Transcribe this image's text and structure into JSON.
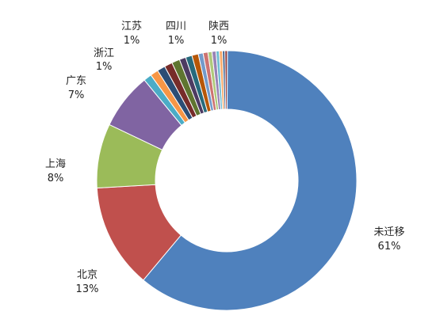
{
  "chart_data": {
    "type": "pie",
    "variant": "donut",
    "title": "",
    "slices": [
      {
        "label": "未迁移",
        "value": 61,
        "value_label": "61%",
        "color": "#4f81bd"
      },
      {
        "label": "北京",
        "value": 13,
        "value_label": "13%",
        "color": "#c0504d"
      },
      {
        "label": "上海",
        "value": 8,
        "value_label": "8%",
        "color": "#9bbb59"
      },
      {
        "label": "广东",
        "value": 7,
        "value_label": "7%",
        "color": "#8064a2"
      },
      {
        "label": "浙江",
        "value": 1,
        "value_label": "1%",
        "color": "#4bacc6"
      },
      {
        "label": "",
        "value": 1,
        "value_label": "",
        "color": "#f79646"
      },
      {
        "label": "江苏",
        "value": 1,
        "value_label": "1%",
        "color": "#2c4d75"
      },
      {
        "label": "",
        "value": 1,
        "value_label": "",
        "color": "#772c2a"
      },
      {
        "label": "四川",
        "value": 1,
        "value_label": "1%",
        "color": "#5f7530"
      },
      {
        "label": "",
        "value": 0.8,
        "value_label": "",
        "color": "#4d3b62"
      },
      {
        "label": "",
        "value": 0.8,
        "value_label": "",
        "color": "#276a7c"
      },
      {
        "label": "陕西",
        "value": 0.8,
        "value_label": "1%",
        "color": "#b65708"
      },
      {
        "label": "",
        "value": 0.6,
        "value_label": "",
        "color": "#729aca"
      },
      {
        "label": "",
        "value": 0.6,
        "value_label": "",
        "color": "#cd7371"
      },
      {
        "label": "",
        "value": 0.5,
        "value_label": "",
        "color": "#afc97a"
      },
      {
        "label": "",
        "value": 0.5,
        "value_label": "",
        "color": "#9983b5"
      },
      {
        "label": "",
        "value": 0.4,
        "value_label": "",
        "color": "#6fbdd1"
      },
      {
        "label": "",
        "value": 0.4,
        "value_label": "",
        "color": "#f9ab6b"
      },
      {
        "label": "",
        "value": 0.3,
        "value_label": "",
        "color": "#3a5f8d"
      },
      {
        "label": "",
        "value": 0.3,
        "value_label": "",
        "color": "#903735"
      }
    ],
    "legend": "none"
  }
}
